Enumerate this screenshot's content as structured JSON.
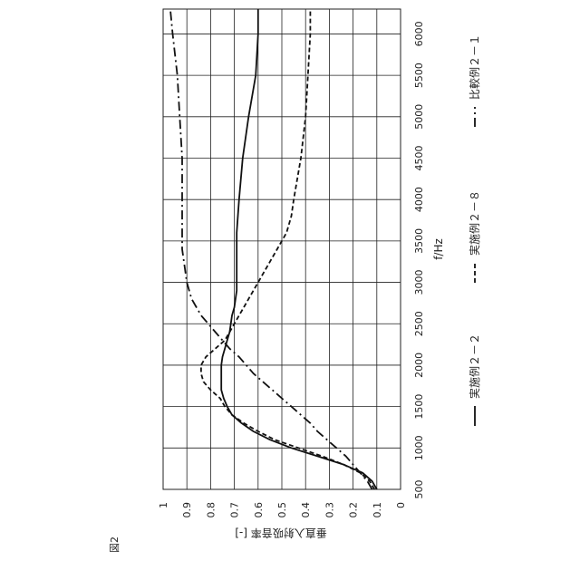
{
  "figure_label": "図2",
  "chart_data": {
    "type": "line",
    "orientation": "rotated 90° counter-clockwise",
    "xlabel": "f/Hz",
    "ylabel": "垂直入射吸音率 [-]",
    "xlim": [
      500,
      6300
    ],
    "ylim": [
      0,
      1
    ],
    "x_ticks": [
      "500",
      "1000",
      "1500",
      "2000",
      "2500",
      "3000",
      "3500",
      "4000",
      "4500",
      "5000",
      "5500",
      "6000"
    ],
    "y_ticks": [
      "0",
      "0.1",
      "0.2",
      "0.3",
      "0.4",
      "0.5",
      "0.6",
      "0.7",
      "0.8",
      "0.9",
      "1"
    ],
    "grid": true,
    "legend_position": "right",
    "series": [
      {
        "name": "実施例２－２",
        "style": "solid",
        "x": [
          500,
          600,
          700,
          800,
          900,
          1000,
          1100,
          1200,
          1300,
          1400,
          1500,
          1600,
          1700,
          1800,
          1900,
          2000,
          2100,
          2200,
          2300,
          2400,
          2500,
          2600,
          2700,
          2800,
          2900,
          3000,
          3200,
          3400,
          3600,
          3800,
          4000,
          4500,
          5000,
          5500,
          6000,
          6300
        ],
        "values": [
          0.1,
          0.12,
          0.16,
          0.24,
          0.35,
          0.46,
          0.55,
          0.62,
          0.67,
          0.71,
          0.73,
          0.745,
          0.755,
          0.755,
          0.755,
          0.755,
          0.75,
          0.74,
          0.73,
          0.72,
          0.715,
          0.71,
          0.7,
          0.695,
          0.69,
          0.69,
          0.69,
          0.69,
          0.69,
          0.685,
          0.68,
          0.665,
          0.64,
          0.61,
          0.6,
          0.6
        ]
      },
      {
        "name": "実施例２－８",
        "style": "dashed",
        "x": [
          500,
          600,
          700,
          800,
          900,
          1000,
          1100,
          1200,
          1300,
          1400,
          1500,
          1600,
          1700,
          1800,
          1900,
          2000,
          2100,
          2200,
          2300,
          2400,
          2500,
          2600,
          2700,
          2800,
          2900,
          3000,
          3200,
          3400,
          3600,
          3800,
          4000,
          4500,
          5000,
          5500,
          6000,
          6300
        ],
        "values": [
          0.11,
          0.13,
          0.17,
          0.24,
          0.33,
          0.43,
          0.53,
          0.6,
          0.66,
          0.71,
          0.74,
          0.76,
          0.8,
          0.83,
          0.84,
          0.84,
          0.82,
          0.78,
          0.74,
          0.72,
          0.7,
          0.68,
          0.66,
          0.64,
          0.62,
          0.6,
          0.56,
          0.52,
          0.48,
          0.46,
          0.45,
          0.42,
          0.4,
          0.39,
          0.38,
          0.38
        ]
      },
      {
        "name": "比較例２－１",
        "style": "dashdot",
        "x": [
          500,
          600,
          700,
          800,
          900,
          1000,
          1100,
          1200,
          1300,
          1400,
          1500,
          1600,
          1700,
          1800,
          1900,
          2000,
          2100,
          2200,
          2300,
          2400,
          2500,
          2600,
          2700,
          2800,
          2900,
          3000,
          3200,
          3400,
          3600,
          3800,
          4000,
          4500,
          5000,
          5500,
          6000,
          6300
        ],
        "values": [
          0.12,
          0.14,
          0.17,
          0.2,
          0.23,
          0.27,
          0.31,
          0.35,
          0.38,
          0.42,
          0.46,
          0.5,
          0.54,
          0.58,
          0.62,
          0.65,
          0.68,
          0.72,
          0.75,
          0.78,
          0.81,
          0.84,
          0.86,
          0.88,
          0.89,
          0.9,
          0.91,
          0.92,
          0.92,
          0.92,
          0.92,
          0.92,
          0.93,
          0.94,
          0.96,
          0.97
        ]
      }
    ]
  }
}
